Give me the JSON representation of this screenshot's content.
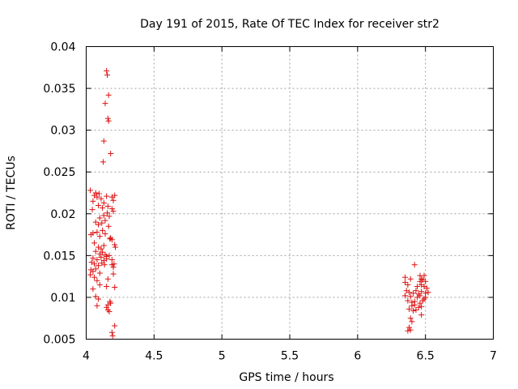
{
  "chart_data": {
    "type": "scatter",
    "title": "Day 191 of 2015, Rate Of TEC Index for receiver str2",
    "xlabel": "GPS time / hours",
    "ylabel": "ROTI / TECUs",
    "xlim": [
      4,
      7
    ],
    "ylim": [
      0.005,
      0.04
    ],
    "xticks": [
      "4",
      "4.5",
      "5",
      "5.5",
      "6",
      "6.5",
      "7"
    ],
    "yticks": [
      "0.005",
      "0.01",
      "0.015",
      "0.02",
      "0.025",
      "0.03",
      "0.035",
      "0.04"
    ],
    "grid": true,
    "marker": "+",
    "color": "#dd1111",
    "series": [
      {
        "name": "ROTI",
        "points": [
          [
            4.15,
            0.0371
          ],
          [
            4.155,
            0.0366
          ],
          [
            4.165,
            0.0342
          ],
          [
            4.14,
            0.0332
          ],
          [
            4.16,
            0.0314
          ],
          [
            4.165,
            0.0311
          ],
          [
            4.13,
            0.0287
          ],
          [
            4.18,
            0.0272
          ],
          [
            4.125,
            0.0262
          ],
          [
            4.03,
            0.0228
          ],
          [
            4.06,
            0.0222
          ],
          [
            4.07,
            0.0225
          ],
          [
            4.08,
            0.022
          ],
          [
            4.05,
            0.0215
          ],
          [
            4.095,
            0.0224
          ],
          [
            4.11,
            0.0218
          ],
          [
            4.13,
            0.0213
          ],
          [
            4.15,
            0.0221
          ],
          [
            4.19,
            0.022
          ],
          [
            4.2,
            0.0216
          ],
          [
            4.21,
            0.0222
          ],
          [
            4.045,
            0.0205
          ],
          [
            4.09,
            0.021
          ],
          [
            4.12,
            0.0207
          ],
          [
            4.16,
            0.0209
          ],
          [
            4.19,
            0.0206
          ],
          [
            4.2,
            0.0203
          ],
          [
            4.1,
            0.0195
          ],
          [
            4.13,
            0.0198
          ],
          [
            4.155,
            0.0201
          ],
          [
            4.17,
            0.0197
          ],
          [
            4.07,
            0.019
          ],
          [
            4.09,
            0.0187
          ],
          [
            4.115,
            0.0189
          ],
          [
            4.14,
            0.0192
          ],
          [
            4.165,
            0.0185
          ],
          [
            4.035,
            0.0175
          ],
          [
            4.05,
            0.0177
          ],
          [
            4.08,
            0.0178
          ],
          [
            4.1,
            0.0173
          ],
          [
            4.12,
            0.018
          ],
          [
            4.14,
            0.0176
          ],
          [
            4.18,
            0.0171
          ],
          [
            4.19,
            0.0169
          ],
          [
            4.175,
            0.017
          ],
          [
            4.06,
            0.0165
          ],
          [
            4.09,
            0.016
          ],
          [
            4.11,
            0.0158
          ],
          [
            4.13,
            0.0162
          ],
          [
            4.21,
            0.0163
          ],
          [
            4.215,
            0.016
          ],
          [
            4.07,
            0.0155
          ],
          [
            4.1,
            0.0152
          ],
          [
            4.12,
            0.0154
          ],
          [
            4.14,
            0.0151
          ],
          [
            4.15,
            0.0149
          ],
          [
            4.17,
            0.015
          ],
          [
            4.05,
            0.0147
          ],
          [
            4.08,
            0.0145
          ],
          [
            4.11,
            0.0148
          ],
          [
            4.13,
            0.0144
          ],
          [
            4.15,
            0.0146
          ],
          [
            4.19,
            0.0145
          ],
          [
            4.04,
            0.0142
          ],
          [
            4.06,
            0.014
          ],
          [
            4.09,
            0.0138
          ],
          [
            4.115,
            0.0141
          ],
          [
            4.135,
            0.0139
          ],
          [
            4.19,
            0.0139
          ],
          [
            4.2,
            0.0136
          ],
          [
            4.205,
            0.014
          ],
          [
            4.035,
            0.0133
          ],
          [
            4.05,
            0.0131
          ],
          [
            4.07,
            0.0134
          ],
          [
            4.1,
            0.0129
          ],
          [
            4.2,
            0.0128
          ],
          [
            4.03,
            0.0127
          ],
          [
            4.06,
            0.0124
          ],
          [
            4.08,
            0.012
          ],
          [
            4.16,
            0.0122
          ],
          [
            4.1,
            0.0115
          ],
          [
            4.15,
            0.0113
          ],
          [
            4.21,
            0.0112
          ],
          [
            4.05,
            0.011
          ],
          [
            4.07,
            0.0101
          ],
          [
            4.09,
            0.0098
          ],
          [
            4.175,
            0.0095
          ],
          [
            4.18,
            0.0093
          ],
          [
            4.16,
            0.0091
          ],
          [
            4.08,
            0.009
          ],
          [
            4.15,
            0.0088
          ],
          [
            4.16,
            0.0085
          ],
          [
            4.17,
            0.0083
          ],
          [
            4.21,
            0.0066
          ],
          [
            4.19,
            0.0058
          ],
          [
            4.195,
            0.0054
          ],
          [
            6.42,
            0.0139
          ],
          [
            6.35,
            0.0124
          ],
          [
            6.39,
            0.0122
          ],
          [
            6.46,
            0.0126
          ],
          [
            6.47,
            0.0122
          ],
          [
            6.49,
            0.0126
          ],
          [
            6.35,
            0.0118
          ],
          [
            6.46,
            0.0119
          ],
          [
            6.48,
            0.0121
          ],
          [
            6.5,
            0.0119
          ],
          [
            6.37,
            0.0115
          ],
          [
            6.44,
            0.0113
          ],
          [
            6.47,
            0.0115
          ],
          [
            6.49,
            0.0113
          ],
          [
            6.51,
            0.0111
          ],
          [
            6.36,
            0.0108
          ],
          [
            6.38,
            0.0106
          ],
          [
            6.41,
            0.0105
          ],
          [
            6.43,
            0.0108
          ],
          [
            6.45,
            0.0104
          ],
          [
            6.47,
            0.0107
          ],
          [
            6.5,
            0.0105
          ],
          [
            6.52,
            0.0106
          ],
          [
            6.35,
            0.0102
          ],
          [
            6.39,
            0.0101
          ],
          [
            6.44,
            0.01
          ],
          [
            6.46,
            0.0102
          ],
          [
            6.49,
            0.0098
          ],
          [
            6.5,
            0.01
          ],
          [
            6.37,
            0.0096
          ],
          [
            6.4,
            0.0094
          ],
          [
            6.42,
            0.0095
          ],
          [
            6.46,
            0.0093
          ],
          [
            6.48,
            0.0096
          ],
          [
            6.4,
            0.009
          ],
          [
            6.42,
            0.0091
          ],
          [
            6.45,
            0.0088
          ],
          [
            6.47,
            0.0089
          ],
          [
            6.38,
            0.0086
          ],
          [
            6.41,
            0.0084
          ],
          [
            6.43,
            0.0085
          ],
          [
            6.47,
            0.0079
          ],
          [
            6.39,
            0.0075
          ],
          [
            6.4,
            0.0071
          ],
          [
            6.38,
            0.0064
          ],
          [
            6.39,
            0.0061
          ],
          [
            6.37,
            0.006
          ]
        ]
      }
    ]
  }
}
